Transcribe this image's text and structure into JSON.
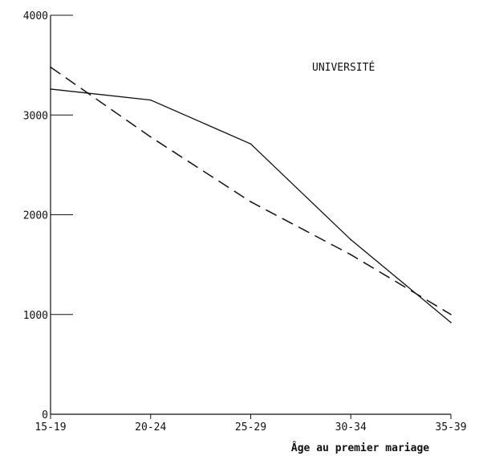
{
  "chart_data": {
    "type": "line",
    "categories": [
      "15-19",
      "20-24",
      "25-29",
      "30-34",
      "35-39"
    ],
    "series": [
      {
        "style": "solid",
        "values": [
          3260,
          3150,
          2710,
          1750,
          920
        ]
      },
      {
        "style": "dashed",
        "values": [
          3480,
          2780,
          2130,
          1600,
          1000
        ]
      }
    ],
    "ylim": [
      0,
      4000
    ],
    "yticks": [
      0,
      1000,
      2000,
      3000,
      4000
    ],
    "ytick_labels": [
      "0",
      "1000",
      "2000",
      "3000",
      "4000"
    ],
    "xlabel": "Âge au premier mariage",
    "ylabel": "",
    "title": "",
    "annotation": "UNIVERSITÉ",
    "grid": false,
    "colors": {
      "line": "#111111",
      "axis": "#111111"
    }
  }
}
